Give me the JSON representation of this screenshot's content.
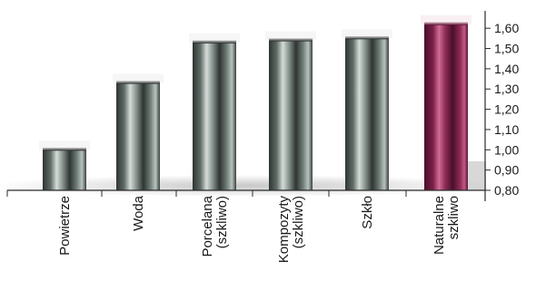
{
  "chart_data": {
    "type": "bar",
    "categories": [
      [
        "Powietrze"
      ],
      [
        "Woda"
      ],
      [
        "Porcelana",
        "(szkliwo)"
      ],
      [
        "Kompozyty",
        "(szkliwo)"
      ],
      [
        "Szkło"
      ],
      [
        "Naturalne",
        "szkliwo"
      ]
    ],
    "values": [
      1.0,
      1.33,
      1.53,
      1.54,
      1.55,
      1.62
    ],
    "y_ticks": [
      "0,80",
      "0,90",
      "1,00",
      "1,10",
      "1,20",
      "1,30",
      "1,40",
      "1,50",
      "1,60"
    ],
    "ylim": [
      0.8,
      1.65
    ],
    "y_axis_side": "right",
    "grid": false,
    "title": "",
    "xlabel": "",
    "ylabel": "",
    "colors": {
      "bar_dark": "#2e3532",
      "bar_mid": "#8c9893",
      "bar_light": "#d5dcd8",
      "highlight_dark": "#4a0f2a",
      "highlight_mid": "#8e2c57",
      "highlight_light": "#d06c93",
      "axis": "#2a2a2a",
      "text": "#1a1a1a"
    },
    "highlight_index": 5
  }
}
